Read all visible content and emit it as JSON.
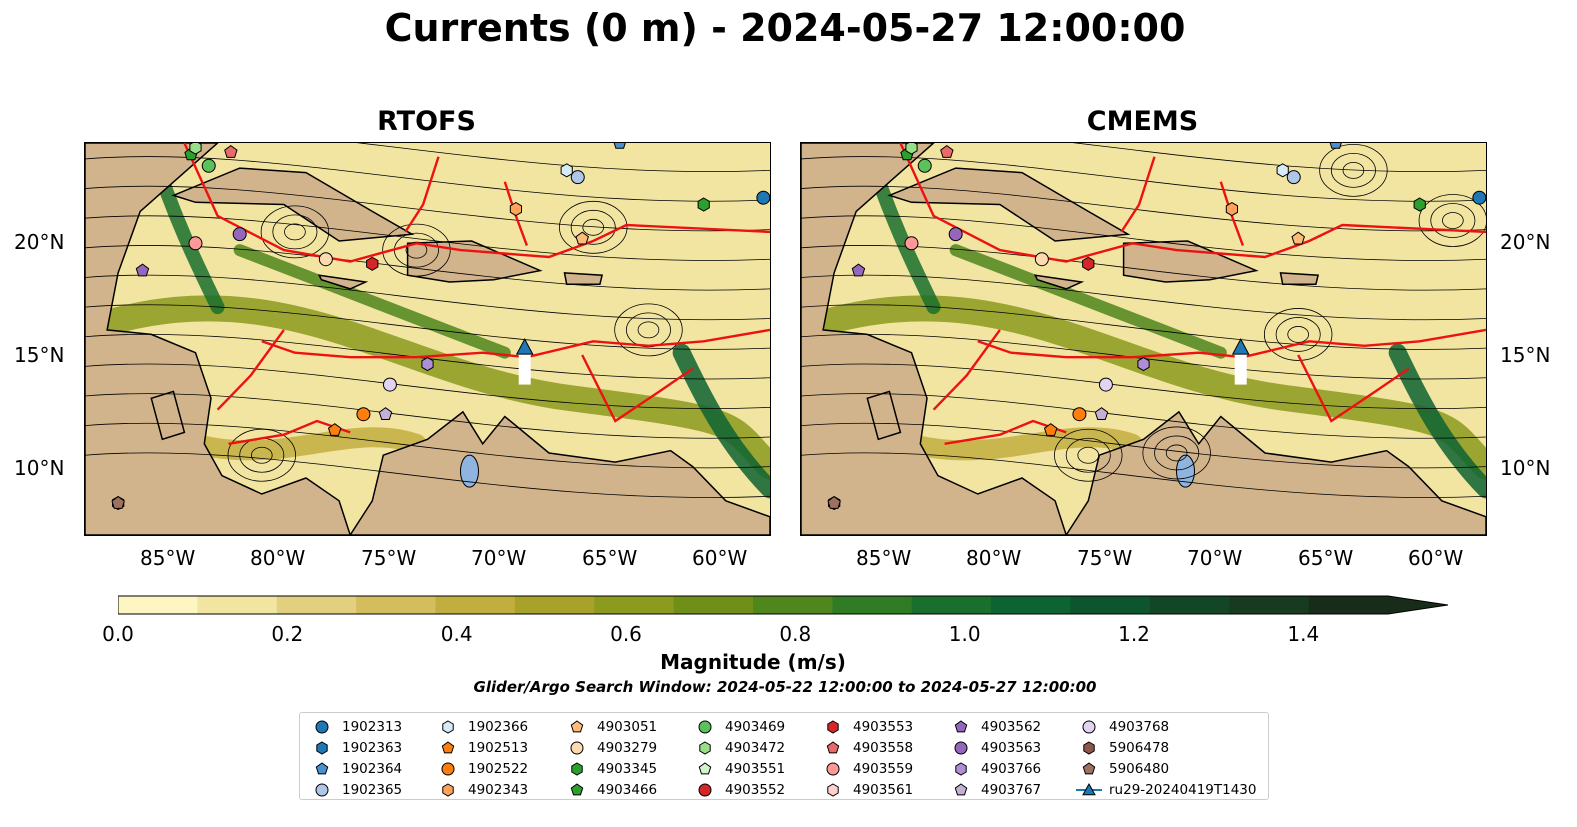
{
  "figure": {
    "suptitle": "Currents (0 m) - 2024-05-27 12:00:00",
    "search_window": "Glider/Argo Search Window: 2024-05-22 12:00:00 to 2024-05-27 12:00:00"
  },
  "chart_data": [
    {
      "type": "heatmap",
      "title": "RTOFS",
      "xlim": [
        -89,
        -58
      ],
      "ylim": [
        7,
        24.2
      ],
      "x_ticks": [
        "85°W",
        "80°W",
        "75°W",
        "70°W",
        "65°W",
        "60°W"
      ],
      "y_ticks": [
        "20°N",
        "15°N",
        "10°N"
      ],
      "y_tick_side": "left",
      "glider": {
        "name": "ru29-20240419T1430",
        "track": [
          [
            -69.1,
            15.2
          ],
          [
            -69.1,
            13.6
          ]
        ]
      },
      "floats": [
        {
          "id": "1902313",
          "lon": -58.3,
          "lat": 21.8
        },
        {
          "id": "1902364",
          "lon": -64.8,
          "lat": 24.2
        },
        {
          "id": "1902365",
          "lon": -66.7,
          "lat": 22.7
        },
        {
          "id": "1902366",
          "lon": -67.2,
          "lat": 23.0
        },
        {
          "id": "1902513",
          "lon": -77.7,
          "lat": 11.6
        },
        {
          "id": "1902522",
          "lon": -76.4,
          "lat": 12.3
        },
        {
          "id": "4902343",
          "lon": -69.5,
          "lat": 21.3
        },
        {
          "id": "4903051",
          "lon": -66.5,
          "lat": 20.0
        },
        {
          "id": "4903279",
          "lon": -78.1,
          "lat": 19.1
        },
        {
          "id": "4903345",
          "lon": -61.0,
          "lat": 21.5
        },
        {
          "id": "4903466",
          "lon": -84.2,
          "lat": 23.7
        },
        {
          "id": "4903469",
          "lon": -83.4,
          "lat": 23.2
        },
        {
          "id": "4903472",
          "lon": -84.0,
          "lat": 24.0
        },
        {
          "id": "4903553",
          "lon": -76.0,
          "lat": 18.9
        },
        {
          "id": "4903558",
          "lon": -82.4,
          "lat": 23.8
        },
        {
          "id": "4903559",
          "lon": -84.0,
          "lat": 19.8
        },
        {
          "id": "4903562",
          "lon": -86.4,
          "lat": 18.6
        },
        {
          "id": "4903563",
          "lon": -82.0,
          "lat": 20.2
        },
        {
          "id": "4903766",
          "lon": -73.5,
          "lat": 14.5
        },
        {
          "id": "4903767",
          "lon": -75.4,
          "lat": 12.3
        },
        {
          "id": "4903768",
          "lon": -75.2,
          "lat": 13.6
        },
        {
          "id": "5906478",
          "lon": -87.5,
          "lat": 8.4
        },
        {
          "id": "5906480",
          "lon": -87.5,
          "lat": 8.4
        }
      ]
    },
    {
      "type": "heatmap",
      "title": "CMEMS",
      "xlim": [
        -89,
        -58
      ],
      "ylim": [
        7,
        24.2
      ],
      "x_ticks": [
        "85°W",
        "80°W",
        "75°W",
        "70°W",
        "65°W",
        "60°W"
      ],
      "y_ticks": [
        "20°N",
        "15°N",
        "10°N"
      ],
      "y_tick_side": "right",
      "glider": {
        "name": "ru29-20240419T1430",
        "track": [
          [
            -69.1,
            15.2
          ],
          [
            -69.1,
            13.6
          ]
        ]
      },
      "floats": [
        {
          "id": "1902313",
          "lon": -58.3,
          "lat": 21.8
        },
        {
          "id": "1902364",
          "lon": -64.8,
          "lat": 24.2
        },
        {
          "id": "1902365",
          "lon": -66.7,
          "lat": 22.7
        },
        {
          "id": "1902366",
          "lon": -67.2,
          "lat": 23.0
        },
        {
          "id": "1902513",
          "lon": -77.7,
          "lat": 11.6
        },
        {
          "id": "1902522",
          "lon": -76.4,
          "lat": 12.3
        },
        {
          "id": "4902343",
          "lon": -69.5,
          "lat": 21.3
        },
        {
          "id": "4903051",
          "lon": -66.5,
          "lat": 20.0
        },
        {
          "id": "4903279",
          "lon": -78.1,
          "lat": 19.1
        },
        {
          "id": "4903345",
          "lon": -61.0,
          "lat": 21.5
        },
        {
          "id": "4903466",
          "lon": -84.2,
          "lat": 23.7
        },
        {
          "id": "4903469",
          "lon": -83.4,
          "lat": 23.2
        },
        {
          "id": "4903472",
          "lon": -84.0,
          "lat": 24.0
        },
        {
          "id": "4903553",
          "lon": -76.0,
          "lat": 18.9
        },
        {
          "id": "4903558",
          "lon": -82.4,
          "lat": 23.8
        },
        {
          "id": "4903559",
          "lon": -84.0,
          "lat": 19.8
        },
        {
          "id": "4903562",
          "lon": -86.4,
          "lat": 18.6
        },
        {
          "id": "4903563",
          "lon": -82.0,
          "lat": 20.2
        },
        {
          "id": "4903766",
          "lon": -73.5,
          "lat": 14.5
        },
        {
          "id": "4903767",
          "lon": -75.4,
          "lat": 12.3
        },
        {
          "id": "4903768",
          "lon": -75.2,
          "lat": 13.6
        },
        {
          "id": "5906478",
          "lon": -87.5,
          "lat": 8.4
        },
        {
          "id": "5906480",
          "lon": -87.5,
          "lat": 8.4
        }
      ]
    }
  ],
  "colorbar": {
    "label": "Magnitude (m/s)",
    "min": 0.0,
    "max": 1.5,
    "extend": "max",
    "ticks": [
      "0.0",
      "0.2",
      "0.4",
      "0.6",
      "0.8",
      "1.0",
      "1.2",
      "1.4"
    ],
    "tick_values": [
      0,
      0.2,
      0.4,
      0.6,
      0.8,
      1.0,
      1.2,
      1.4
    ],
    "colors": [
      "#fdf6c3",
      "#f2e5a2",
      "#e3d07e",
      "#d4bd5c",
      "#c2ae3f",
      "#a8a12a",
      "#8c9a1d",
      "#6f8f19",
      "#4f861d",
      "#307c24",
      "#1a6f2d",
      "#0d6331",
      "#0c552e",
      "#134627",
      "#183a20",
      "#172d1a"
    ]
  },
  "legend": {
    "columns": [
      [
        {
          "label": "1902313",
          "color": "#1f77b4",
          "marker": "circle"
        },
        {
          "label": "1902363",
          "color": "#1f77b4",
          "marker": "hexagon"
        },
        {
          "label": "1902364",
          "color": "#4a90d0",
          "marker": "pentagon"
        },
        {
          "label": "1902365",
          "color": "#aec7e8",
          "marker": "circle"
        }
      ],
      [
        {
          "label": "1902366",
          "color": "#d6eaf8",
          "marker": "hexagon"
        },
        {
          "label": "1902513",
          "color": "#ff7f0e",
          "marker": "pentagon"
        },
        {
          "label": "1902522",
          "color": "#ff7f0e",
          "marker": "circle"
        },
        {
          "label": "4902343",
          "color": "#ffa25a",
          "marker": "hexagon"
        }
      ],
      [
        {
          "label": "4903051",
          "color": "#ffbb78",
          "marker": "pentagon"
        },
        {
          "label": "4903279",
          "color": "#ffdab0",
          "marker": "circle"
        },
        {
          "label": "4903345",
          "color": "#2ca02c",
          "marker": "hexagon"
        },
        {
          "label": "4903466",
          "color": "#2ca02c",
          "marker": "pentagon"
        }
      ],
      [
        {
          "label": "4903469",
          "color": "#5bc25b",
          "marker": "circle"
        },
        {
          "label": "4903472",
          "color": "#98df8a",
          "marker": "hexagon"
        },
        {
          "label": "4903551",
          "color": "#d4f5cc",
          "marker": "pentagon"
        },
        {
          "label": "4903552",
          "color": "#d62728",
          "marker": "circle"
        }
      ],
      [
        {
          "label": "4903553",
          "color": "#d62728",
          "marker": "hexagon"
        },
        {
          "label": "4903558",
          "color": "#e86a6a",
          "marker": "pentagon"
        },
        {
          "label": "4903559",
          "color": "#ff9896",
          "marker": "circle"
        },
        {
          "label": "4903561",
          "color": "#ffd0cf",
          "marker": "hexagon"
        }
      ],
      [
        {
          "label": "4903562",
          "color": "#9467bd",
          "marker": "pentagon"
        },
        {
          "label": "4903563",
          "color": "#9467bd",
          "marker": "circle"
        },
        {
          "label": "4903766",
          "color": "#b08ed6",
          "marker": "hexagon"
        },
        {
          "label": "4903767",
          "color": "#c5b0d5",
          "marker": "pentagon"
        }
      ],
      [
        {
          "label": "4903768",
          "color": "#e2d4f0",
          "marker": "circle"
        },
        {
          "label": "5906478",
          "color": "#8c564b",
          "marker": "hexagon"
        },
        {
          "label": "5906480",
          "color": "#a0705f",
          "marker": "pentagon"
        },
        {
          "label": "ru29-20240419T1430",
          "color": "#1f77b4",
          "marker": "triangle-line"
        }
      ]
    ]
  }
}
